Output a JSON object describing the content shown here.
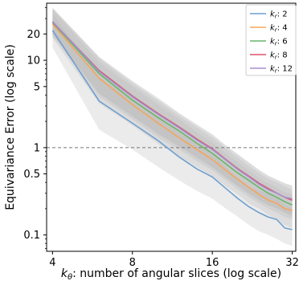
{
  "chart_data": {
    "type": "line",
    "xlabel_parts": [
      "k",
      "θ",
      ": number of angular slices (log scale)"
    ],
    "ylabel": "Equivariance Error (log scale)",
    "xscale": "log2",
    "yscale": "log10",
    "xlim": [
      3.8,
      33
    ],
    "ylim": [
      0.065,
      45
    ],
    "xticks": [
      4,
      8,
      16,
      32
    ],
    "yticks": [
      0.1,
      0.5,
      1,
      5,
      10,
      20
    ],
    "ytick_labels": [
      "0.1",
      "0.5",
      "1",
      "5",
      "10",
      "20"
    ],
    "xtick_labels": [
      "4",
      "8",
      "16",
      "32"
    ],
    "grid": false,
    "legend_position": "top-right",
    "reference_line": {
      "y": 1,
      "style": "dashed",
      "color": "#777777"
    },
    "x": [
      4,
      6,
      8,
      10,
      12,
      14,
      16,
      18,
      20,
      22,
      24,
      26,
      28,
      30,
      32
    ],
    "series": [
      {
        "name": "k_r: 2",
        "legend_base": "k",
        "legend_sub": "r",
        "legend_value": ": 2",
        "color": "#6f9fcf",
        "values": [
          22,
          3.4,
          1.9,
          1.2,
          0.78,
          0.57,
          0.46,
          0.34,
          0.26,
          0.21,
          0.18,
          0.16,
          0.15,
          0.12,
          0.115
        ],
        "band": [
          [
            14,
            34
          ],
          [
            1.6,
            6.5
          ],
          [
            0.95,
            3.6
          ],
          [
            0.6,
            2.3
          ],
          [
            0.42,
            1.5
          ],
          [
            0.32,
            1.1
          ],
          [
            0.26,
            0.85
          ],
          [
            0.2,
            0.6
          ],
          [
            0.16,
            0.45
          ],
          [
            0.13,
            0.36
          ],
          [
            0.11,
            0.32
          ],
          [
            0.1,
            0.3
          ],
          [
            0.09,
            0.27
          ],
          [
            0.08,
            0.22
          ],
          [
            0.075,
            0.2
          ]
        ]
      },
      {
        "name": "k_r: 4",
        "legend_base": "k",
        "legend_sub": "r",
        "legend_value": ": 4",
        "color": "#f5a559",
        "values": [
          26,
          6.2,
          3.1,
          1.9,
          1.3,
          0.95,
          0.73,
          0.55,
          0.43,
          0.35,
          0.29,
          0.25,
          0.23,
          0.2,
          0.19
        ],
        "band": [
          [
            18,
            38
          ],
          [
            3.2,
            9.5
          ],
          [
            1.8,
            5
          ],
          [
            1.1,
            3.1
          ],
          [
            0.8,
            2.1
          ],
          [
            0.6,
            1.5
          ],
          [
            0.47,
            1.15
          ],
          [
            0.36,
            0.86
          ],
          [
            0.29,
            0.68
          ],
          [
            0.23,
            0.55
          ],
          [
            0.2,
            0.45
          ],
          [
            0.17,
            0.39
          ],
          [
            0.15,
            0.35
          ],
          [
            0.13,
            0.31
          ],
          [
            0.12,
            0.29
          ]
        ]
      },
      {
        "name": "k_r: 6",
        "legend_base": "k",
        "legend_sub": "r",
        "legend_value": ": 6",
        "color": "#69b669",
        "values": [
          27,
          7.0,
          3.5,
          2.2,
          1.55,
          1.12,
          0.86,
          0.65,
          0.51,
          0.42,
          0.35,
          0.3,
          0.27,
          0.24,
          0.22
        ],
        "band": [
          [
            19,
            39
          ],
          [
            3.8,
            10.5
          ],
          [
            2.1,
            5.4
          ],
          [
            1.3,
            3.4
          ],
          [
            0.95,
            2.3
          ],
          [
            0.7,
            1.7
          ],
          [
            0.55,
            1.3
          ],
          [
            0.42,
            0.98
          ],
          [
            0.33,
            0.77
          ],
          [
            0.27,
            0.62
          ],
          [
            0.23,
            0.51
          ],
          [
            0.2,
            0.44
          ],
          [
            0.18,
            0.4
          ],
          [
            0.16,
            0.36
          ],
          [
            0.15,
            0.33
          ]
        ]
      },
      {
        "name": "k_r: 8",
        "legend_base": "k",
        "legend_sub": "r",
        "legend_value": ": 8",
        "color": "#d9546a",
        "values": [
          27.5,
          7.6,
          3.9,
          2.45,
          1.72,
          1.25,
          0.97,
          0.73,
          0.57,
          0.47,
          0.39,
          0.34,
          0.3,
          0.27,
          0.25
        ],
        "band": [
          [
            19.5,
            40
          ],
          [
            4.2,
            11
          ],
          [
            2.3,
            5.8
          ],
          [
            1.45,
            3.7
          ],
          [
            1.05,
            2.5
          ],
          [
            0.78,
            1.85
          ],
          [
            0.6,
            1.42
          ],
          [
            0.46,
            1.06
          ],
          [
            0.36,
            0.84
          ],
          [
            0.3,
            0.68
          ],
          [
            0.25,
            0.56
          ],
          [
            0.22,
            0.48
          ],
          [
            0.2,
            0.43
          ],
          [
            0.18,
            0.39
          ],
          [
            0.16,
            0.36
          ]
        ]
      },
      {
        "name": "k_r: 12",
        "legend_base": "k",
        "legend_sub": "r",
        "legend_value": ": 12",
        "color": "#a78fd0",
        "values": [
          27.8,
          7.4,
          3.8,
          2.4,
          1.68,
          1.22,
          0.95,
          0.72,
          0.56,
          0.46,
          0.38,
          0.33,
          0.3,
          0.27,
          0.26
        ],
        "band": [
          [
            20,
            40
          ],
          [
            4.1,
            10.8
          ],
          [
            2.25,
            5.7
          ],
          [
            1.42,
            3.6
          ],
          [
            1.02,
            2.45
          ],
          [
            0.76,
            1.8
          ],
          [
            0.59,
            1.4
          ],
          [
            0.45,
            1.05
          ],
          [
            0.36,
            0.83
          ],
          [
            0.29,
            0.67
          ],
          [
            0.25,
            0.55
          ],
          [
            0.22,
            0.47
          ],
          [
            0.2,
            0.43
          ],
          [
            0.18,
            0.39
          ],
          [
            0.17,
            0.37
          ]
        ]
      }
    ]
  }
}
